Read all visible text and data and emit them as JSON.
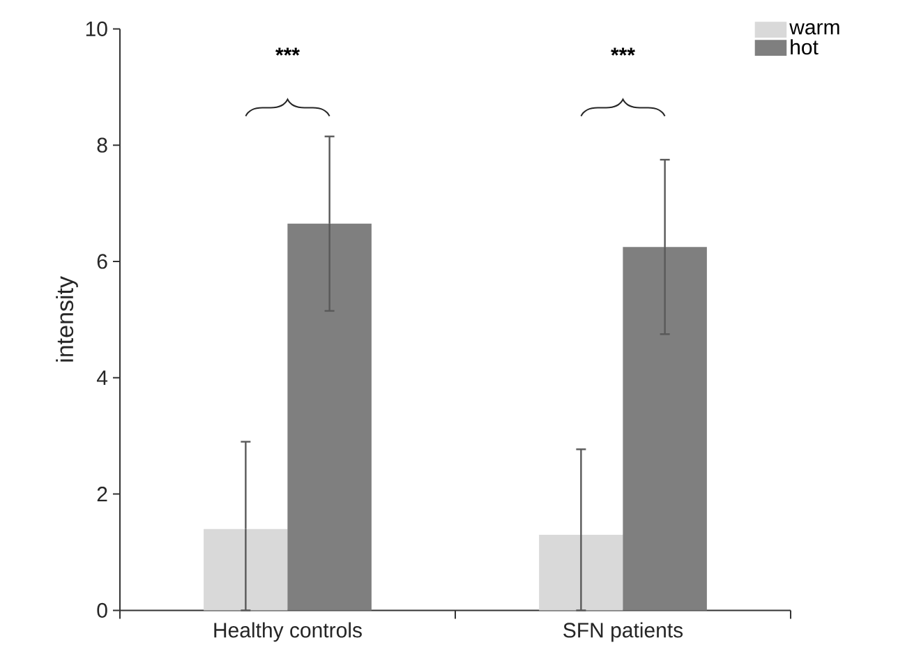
{
  "chart_data": {
    "type": "bar",
    "ylabel": "intensity",
    "categories": [
      "Healthy controls",
      "SFN patients"
    ],
    "series": [
      {
        "name": "warm",
        "color": "#d9d9d9",
        "values": [
          1.4,
          1.3
        ],
        "errors": [
          [
            0,
            2.9
          ],
          [
            0,
            2.77
          ]
        ]
      },
      {
        "name": "hot",
        "color": "#7f7f7f",
        "values": [
          6.65,
          6.25
        ],
        "errors": [
          1.5,
          1.5
        ]
      }
    ],
    "ylim": [
      0,
      10
    ],
    "yticks": [
      0,
      2,
      4,
      6,
      8,
      10
    ],
    "legend": "top right",
    "grid": false,
    "annotations": [
      "***",
      "***"
    ]
  }
}
